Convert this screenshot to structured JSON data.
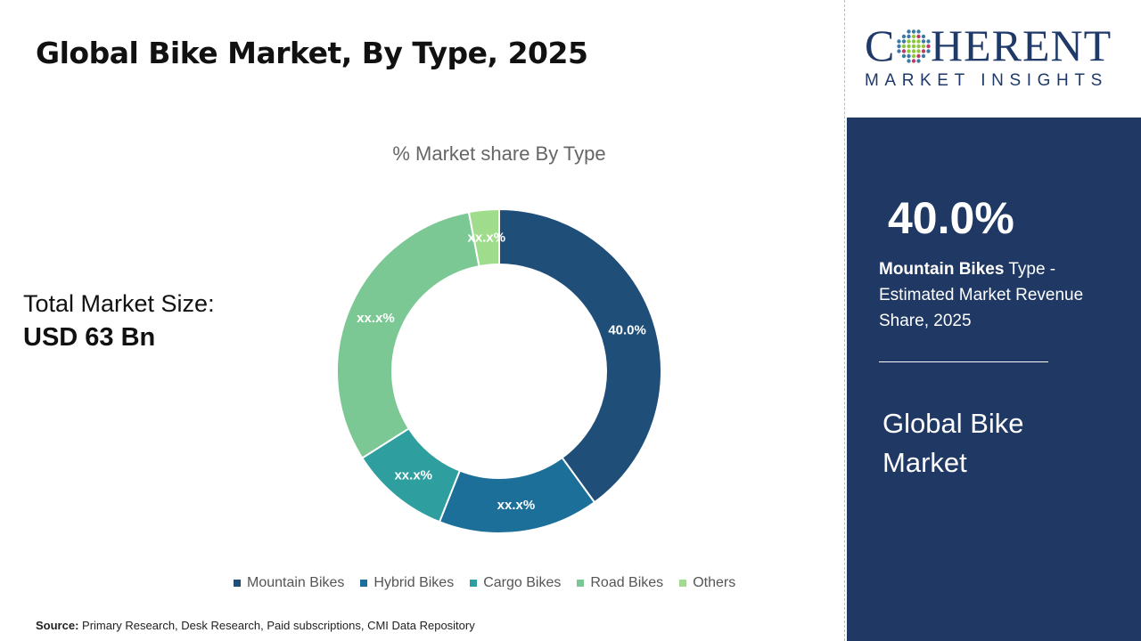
{
  "header": {
    "title": "Global Bike Market, By Type, 2025"
  },
  "total": {
    "label": "Total Market Size:",
    "value": "USD 63 Bn"
  },
  "chart_data": {
    "type": "pie",
    "donut": true,
    "title": "% Market share By Type",
    "categories": [
      "Mountain Bikes",
      "Hybrid Bikes",
      "Cargo Bikes",
      "Road Bikes",
      "Others"
    ],
    "values": [
      40.0,
      16.0,
      10.0,
      31.0,
      3.0
    ],
    "data_labels": [
      "40.0%",
      "xx.x%",
      "xx.x%",
      "xx.x%",
      "xx.x%"
    ],
    "colors": [
      "#1f4e79",
      "#1c6f99",
      "#2e9e9e",
      "#7cc895",
      "#9fdc8c"
    ],
    "legend_position": "bottom"
  },
  "source": {
    "label": "Source:",
    "text": " Primary Research, Desk Research, Paid subscriptions, CMI Data Repository"
  },
  "logo": {
    "line1": "COHERENT",
    "line2": "MARKET INSIGHTS"
  },
  "panel": {
    "percent": "40.0%",
    "highlight": "Mountain Bikes",
    "desc": " Type - Estimated Market Revenue Share, 2025",
    "market": "Global Bike Market"
  }
}
